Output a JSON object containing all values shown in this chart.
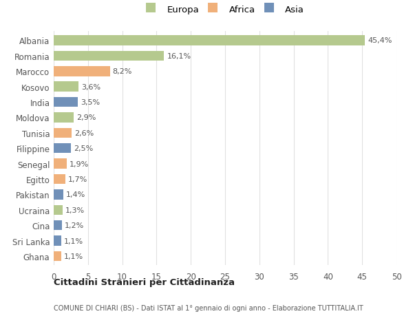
{
  "categories": [
    "Albania",
    "Romania",
    "Marocco",
    "Kosovo",
    "India",
    "Moldova",
    "Tunisia",
    "Filippine",
    "Senegal",
    "Egitto",
    "Pakistan",
    "Ucraina",
    "Cina",
    "Sri Lanka",
    "Ghana"
  ],
  "values": [
    45.4,
    16.1,
    8.2,
    3.6,
    3.5,
    2.9,
    2.6,
    2.5,
    1.9,
    1.7,
    1.4,
    1.3,
    1.2,
    1.1,
    1.1
  ],
  "labels": [
    "45,4%",
    "16,1%",
    "8,2%",
    "3,6%",
    "3,5%",
    "2,9%",
    "2,6%",
    "2,5%",
    "1,9%",
    "1,7%",
    "1,4%",
    "1,3%",
    "1,2%",
    "1,1%",
    "1,1%"
  ],
  "colors": [
    "#b5c98e",
    "#b5c98e",
    "#f0b07a",
    "#b5c98e",
    "#7090b8",
    "#b5c98e",
    "#f0b07a",
    "#7090b8",
    "#f0b07a",
    "#f0b07a",
    "#7090b8",
    "#b5c98e",
    "#7090b8",
    "#7090b8",
    "#f0b07a"
  ],
  "legend_labels": [
    "Europa",
    "Africa",
    "Asia"
  ],
  "legend_colors": [
    "#b5c98e",
    "#f0b07a",
    "#7090b8"
  ],
  "title1": "Cittadini Stranieri per Cittadinanza",
  "title2": "COMUNE DI CHIARI (BS) - Dati ISTAT al 1° gennaio di ogni anno - Elaborazione TUTTITALIA.IT",
  "xlim": [
    0,
    50
  ],
  "xticks": [
    0,
    5,
    10,
    15,
    20,
    25,
    30,
    35,
    40,
    45,
    50
  ],
  "background_color": "#ffffff",
  "grid_color": "#e0e0e0"
}
